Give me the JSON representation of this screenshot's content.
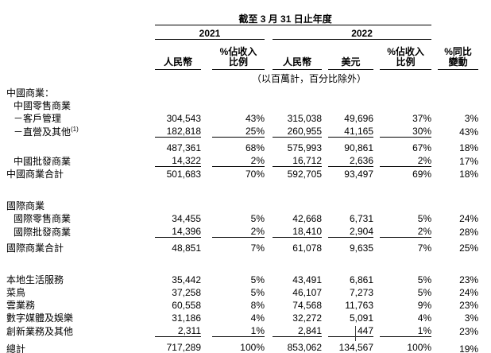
{
  "page": {
    "background": "#ffffff",
    "text_color": "#000000",
    "rule_color": "#000000"
  },
  "table": {
    "period_title": "截至 3 月 31 日止年度",
    "years": [
      "2021",
      "2022"
    ],
    "columns": [
      {
        "top": "",
        "bottom": "人民幣"
      },
      {
        "top": "%佔收入",
        "bottom": "比例"
      },
      {
        "top": "",
        "bottom": "人民幣"
      },
      {
        "top": "",
        "bottom": "美元"
      },
      {
        "top": "%佔收入",
        "bottom": "比例"
      },
      {
        "top": "%同比",
        "bottom": "變動"
      }
    ],
    "unit_note": "（以百萬計，百分比除外）",
    "rows": [
      {
        "label": "中國商業：",
        "indent": 0,
        "values": [
          "",
          "",
          "",
          "",
          "",
          ""
        ]
      },
      {
        "label": "中國零售商業",
        "indent": 1,
        "values": [
          "",
          "",
          "",
          "",
          "",
          ""
        ]
      },
      {
        "label": "－客戶管理",
        "indent": 1,
        "values": [
          "304,543",
          "43%",
          "315,038",
          "49,696",
          "37%",
          "3%"
        ]
      },
      {
        "label": "－直營及其他",
        "sup": "(1)",
        "indent": 1,
        "values": [
          "182,818",
          "25%",
          "260,955",
          "41,165",
          "30%",
          "43%"
        ],
        "rule": "single"
      },
      {
        "label": "",
        "indent": 0,
        "gap_above": true,
        "values": [
          "487,361",
          "68%",
          "575,993",
          "90,861",
          "67%",
          "18%"
        ]
      },
      {
        "label": "中國批發商業",
        "indent": 1,
        "values": [
          "14,322",
          "2%",
          "16,712",
          "2,636",
          "2%",
          "17%"
        ],
        "rule": "single"
      },
      {
        "label": "中國商業合計",
        "indent": 0,
        "values": [
          "501,683",
          "70%",
          "592,705",
          "93,497",
          "69%",
          "18%"
        ]
      },
      {
        "spacer": true
      },
      {
        "label": "國際商業",
        "indent": 0,
        "values": [
          "",
          "",
          "",
          "",
          "",
          ""
        ]
      },
      {
        "label": "國際零售商業",
        "indent": 1,
        "values": [
          "34,455",
          "5%",
          "42,668",
          "6,731",
          "5%",
          "24%"
        ]
      },
      {
        "label": "國際批發商業",
        "indent": 1,
        "values": [
          "14,396",
          "2%",
          "18,410",
          "2,904",
          "2%",
          "28%"
        ],
        "rule": "single"
      },
      {
        "label": "國際商業合計",
        "indent": 0,
        "gap_above": true,
        "values": [
          "48,851",
          "7%",
          "61,078",
          "9,635",
          "7%",
          "25%"
        ]
      },
      {
        "spacer": true
      },
      {
        "label": "本地生活服務",
        "indent": 0,
        "values": [
          "35,442",
          "5%",
          "43,491",
          "6,861",
          "5%",
          "23%"
        ]
      },
      {
        "label": "菜鳥",
        "indent": 0,
        "values": [
          "37,258",
          "5%",
          "46,107",
          "7,273",
          "5%",
          "24%"
        ]
      },
      {
        "label": "雲業務",
        "indent": 0,
        "values": [
          "60,558",
          "8%",
          "74,568",
          "11,763",
          "9%",
          "23%"
        ]
      },
      {
        "label": "數字媒體及娛樂",
        "indent": 0,
        "values": [
          "31,186",
          "4%",
          "32,272",
          "5,091",
          "4%",
          "3%"
        ]
      },
      {
        "label": "創新業務及其他",
        "indent": 0,
        "values": [
          "2,311",
          "1%",
          "2,841",
          "447",
          "1%",
          "23%"
        ],
        "rule": "single"
      },
      {
        "label": "總計",
        "indent": 0,
        "gap_above": true,
        "values": [
          "717,289",
          "100%",
          "853,062",
          "134,567",
          "100%",
          "19%"
        ],
        "rule": "double"
      }
    ]
  }
}
